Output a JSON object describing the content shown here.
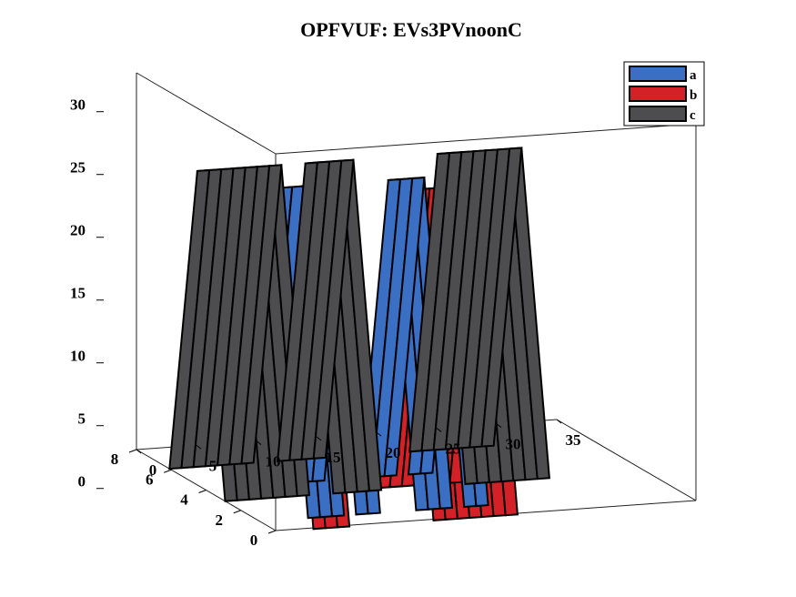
{
  "chart_data": {
    "type": "bar3",
    "title": "OPFVUF: EVs3PVnoonC",
    "x_axis": {
      "ticks": [
        "0",
        "5",
        "10",
        "15",
        "20",
        "25",
        "30",
        "35"
      ],
      "lim": [
        0,
        35
      ]
    },
    "y_axis": {
      "ticks": [
        "0",
        "2",
        "4",
        "6",
        "8"
      ],
      "lim": [
        0,
        8
      ]
    },
    "z_axis": {
      "ticks": [
        "0",
        "5",
        "10",
        "15",
        "20",
        "25",
        "30"
      ],
      "lim": [
        0,
        30
      ]
    },
    "grid": false,
    "legend": {
      "position": "top-right",
      "entries": [
        "a",
        "b",
        "c"
      ]
    },
    "series": [
      {
        "name": "a",
        "color": "#3a6fc4",
        "segments": [
          [
            4,
            7
          ],
          [
            8,
            10
          ],
          [
            13,
            16
          ],
          [
            17,
            19
          ]
        ],
        "peak": 25
      },
      {
        "name": "b",
        "color": "#d42027",
        "segments": [
          [
            3,
            6
          ],
          [
            13,
            20
          ]
        ],
        "peak": 25
      },
      {
        "name": "c",
        "color": "#4d4d4f",
        "segments": [
          [
            0,
            7
          ],
          [
            9,
            13
          ],
          [
            20,
            27
          ]
        ],
        "peak": 25
      }
    ]
  }
}
